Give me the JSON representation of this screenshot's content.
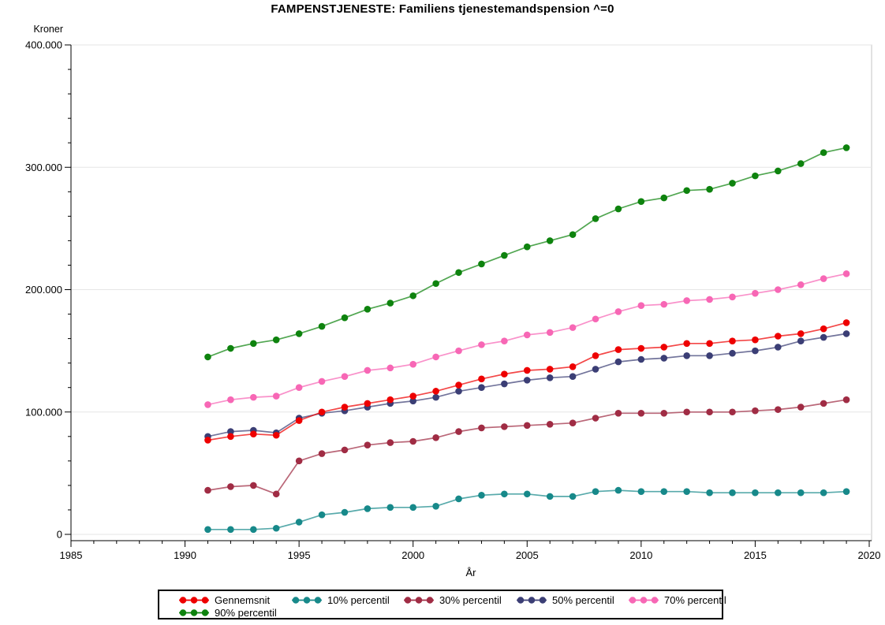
{
  "title": "FAMPENSTJENESTE: Familiens tjenestemandspension ^=0",
  "axes": {
    "y_title": "Kroner",
    "x_title": "År",
    "y_tick_labels": [
      "0",
      "100.000",
      "200.000",
      "300.000",
      "400.000"
    ],
    "x_tick_labels": [
      "1985",
      "1990",
      "1995",
      "2000",
      "2005",
      "2010",
      "2015",
      "2020"
    ]
  },
  "colors": {
    "gennemsnit": "#ee0000",
    "p10": "#17898a",
    "p30": "#a02c44",
    "p50": "#3b3e75",
    "p70": "#f767b5",
    "p90": "#0e830e",
    "gridline": "#e6e6e6",
    "wall_border": "#c6c6c6",
    "axis": "#000000"
  },
  "chart_data": {
    "type": "line",
    "title": "FAMPENSTJENESTE: Familiens tjenestemandspension ^=0",
    "xlabel": "År",
    "ylabel": "Kroner",
    "xlim": [
      1985,
      2020
    ],
    "ylim": [
      0,
      400000
    ],
    "x_major_ticks": [
      1985,
      1990,
      1995,
      2000,
      2005,
      2010,
      2015,
      2020
    ],
    "x_minor_tick_step": 1,
    "y_major_ticks": [
      0,
      100000,
      200000,
      300000,
      400000
    ],
    "y_minor_tick_step": 20000,
    "grid": true,
    "legend_position": "bottom",
    "marker": "circle",
    "x": [
      1991,
      1992,
      1993,
      1994,
      1995,
      1996,
      1997,
      1998,
      1999,
      2000,
      2001,
      2002,
      2003,
      2004,
      2005,
      2006,
      2007,
      2008,
      2009,
      2010,
      2011,
      2012,
      2013,
      2014,
      2015,
      2016,
      2017,
      2018,
      2019
    ],
    "series": [
      {
        "name": "Gennemsnit",
        "color": "#ee0000",
        "values": [
          77000,
          80000,
          82000,
          81000,
          93000,
          100000,
          104000,
          107000,
          110000,
          113000,
          117000,
          122000,
          127000,
          131000,
          134000,
          135000,
          137000,
          146000,
          151000,
          152000,
          153000,
          156000,
          156000,
          158000,
          159000,
          162000,
          164000,
          168000,
          173000
        ]
      },
      {
        "name": "10% percentil",
        "color": "#17898a",
        "values": [
          4000,
          4000,
          4000,
          5000,
          10000,
          16000,
          18000,
          21000,
          22000,
          22000,
          23000,
          29000,
          32000,
          33000,
          33000,
          31000,
          31000,
          35000,
          36000,
          35000,
          35000,
          35000,
          34000,
          34000,
          34000,
          34000,
          34000,
          34000,
          35000
        ]
      },
      {
        "name": "30% percentil",
        "color": "#a02c44",
        "values": [
          36000,
          39000,
          40000,
          33000,
          60000,
          66000,
          69000,
          73000,
          75000,
          76000,
          79000,
          84000,
          87000,
          88000,
          89000,
          90000,
          91000,
          95000,
          99000,
          99000,
          99000,
          100000,
          100000,
          100000,
          101000,
          102000,
          104000,
          107000,
          110000
        ]
      },
      {
        "name": "50% percentil",
        "color": "#3b3e75",
        "values": [
          80000,
          84000,
          85000,
          83000,
          95000,
          99000,
          101000,
          104000,
          107000,
          109000,
          112000,
          117000,
          120000,
          123000,
          126000,
          128000,
          129000,
          135000,
          141000,
          143000,
          144000,
          146000,
          146000,
          148000,
          150000,
          153000,
          158000,
          161000,
          164000
        ]
      },
      {
        "name": "70% percentil",
        "color": "#f767b5",
        "values": [
          106000,
          110000,
          112000,
          113000,
          120000,
          125000,
          129000,
          134000,
          136000,
          139000,
          145000,
          150000,
          155000,
          158000,
          163000,
          165000,
          169000,
          176000,
          182000,
          187000,
          188000,
          191000,
          192000,
          194000,
          197000,
          200000,
          204000,
          209000,
          213000
        ]
      },
      {
        "name": "90% percentil",
        "color": "#0e830e",
        "values": [
          145000,
          152000,
          156000,
          159000,
          164000,
          170000,
          177000,
          184000,
          189000,
          195000,
          205000,
          214000,
          221000,
          228000,
          235000,
          240000,
          245000,
          258000,
          266000,
          272000,
          275000,
          281000,
          282000,
          287000,
          293000,
          297000,
          303000,
          312000,
          316000
        ]
      }
    ]
  },
  "legend": {
    "entries": [
      "Gennemsnit",
      "10% percentil",
      "30% percentil",
      "50% percentil",
      "70% percentil",
      "90% percentil"
    ]
  }
}
